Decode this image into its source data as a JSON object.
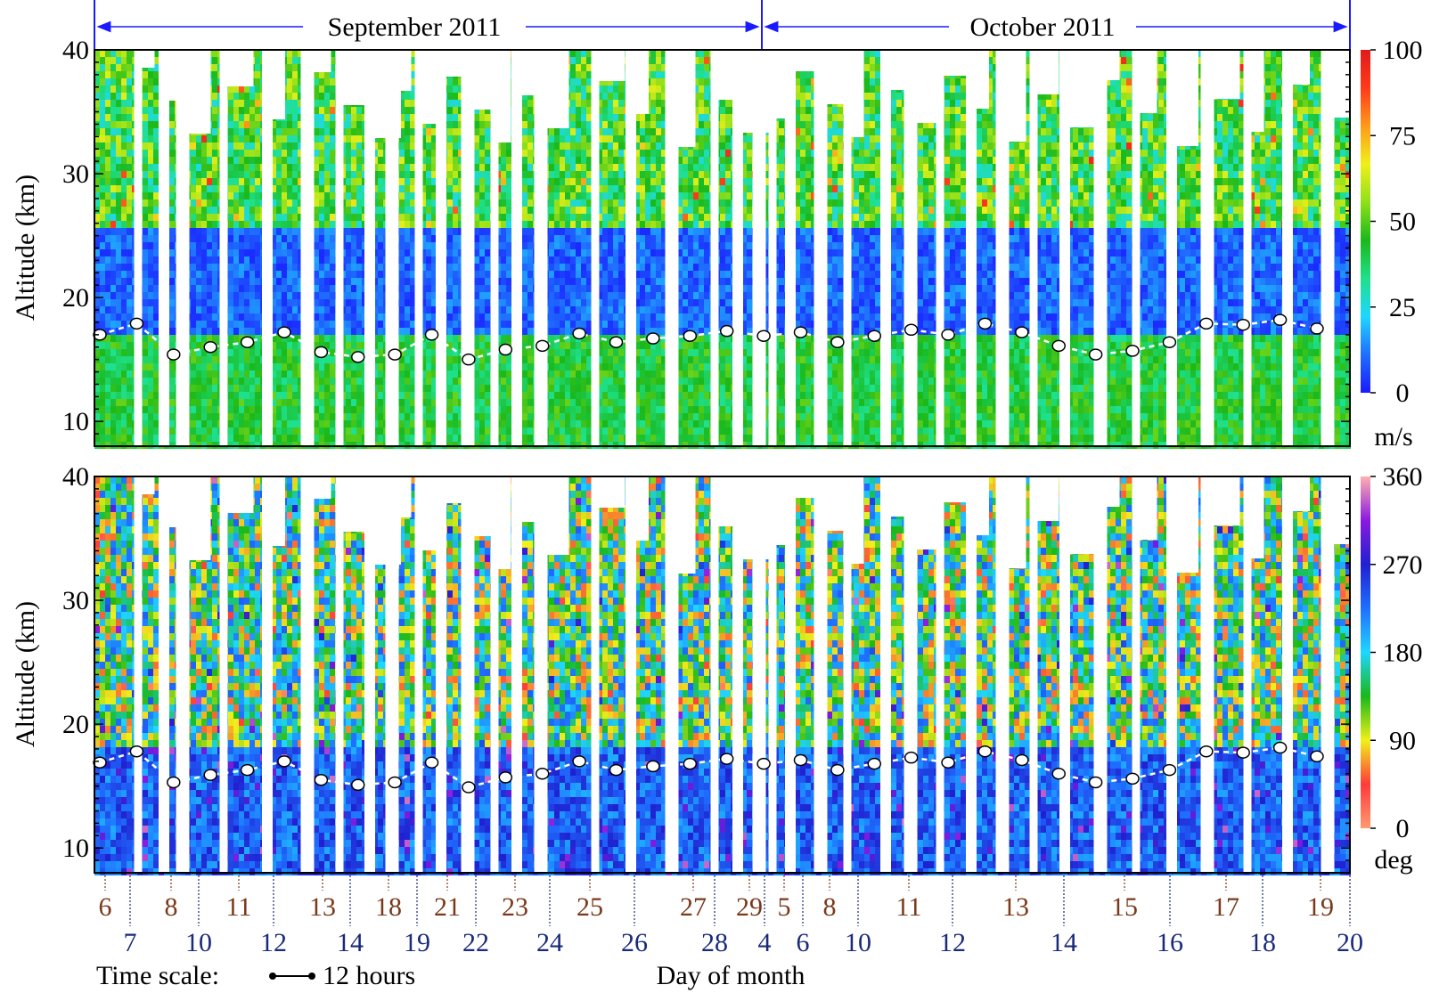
{
  "header": {
    "months": [
      {
        "label": "September 2011"
      },
      {
        "label": "October 2011"
      }
    ]
  },
  "chart_data": [
    {
      "type": "heatmap",
      "panel": "wind-speed",
      "ylabel": "Altitude (km)",
      "ylim": [
        8,
        40
      ],
      "yticks": [
        10,
        20,
        30,
        40
      ],
      "colorbar": {
        "unit": "m/s",
        "ticks": [
          0,
          25,
          50,
          75,
          100
        ],
        "range": [
          0,
          100
        ],
        "colors": [
          "#1a1aff",
          "#1f6fff",
          "#1fd6ff",
          "#1fe08a",
          "#1ab81a",
          "#8fe01a",
          "#f0f01a",
          "#ff9a1a",
          "#ff3a1a",
          "#e01a1a"
        ]
      },
      "tropopause_km": [
        17.0,
        17.9,
        15.4,
        16.0,
        16.4,
        17.2,
        15.6,
        15.2,
        15.4,
        17.0,
        15.0,
        15.8,
        16.1,
        17.1,
        16.4,
        16.7,
        16.9,
        17.3,
        16.9,
        17.2,
        16.4,
        16.9,
        17.4,
        17.0,
        17.9,
        17.2,
        16.1,
        15.4,
        15.7,
        16.4,
        17.9,
        17.8,
        18.2,
        17.5
      ]
    },
    {
      "type": "heatmap",
      "panel": "wind-direction",
      "ylabel": "Altitude (km)",
      "ylim": [
        8,
        40
      ],
      "yticks": [
        10,
        20,
        30,
        40
      ],
      "colorbar": {
        "unit": "deg",
        "ticks": [
          0,
          90,
          180,
          270,
          360
        ],
        "range": [
          0,
          360
        ],
        "colors": [
          "#ff9a70",
          "#ff3a3a",
          "#f0f01a",
          "#1ab81a",
          "#1fd6ff",
          "#1f6fff",
          "#2020d0",
          "#8a1ae0",
          "#ffb0b0"
        ]
      },
      "tropopause_km": [
        16.9,
        17.8,
        15.3,
        15.9,
        16.3,
        17.0,
        15.5,
        15.1,
        15.3,
        16.9,
        14.9,
        15.7,
        16.0,
        17.0,
        16.3,
        16.6,
        16.8,
        17.2,
        16.8,
        17.1,
        16.3,
        16.8,
        17.3,
        16.9,
        17.8,
        17.1,
        16.0,
        15.3,
        15.6,
        16.3,
        17.8,
        17.7,
        18.1,
        17.4
      ]
    }
  ],
  "xaxis": {
    "upper_days": [
      "6",
      "8",
      "11",
      "13",
      "18",
      "21",
      "23",
      "25",
      "27",
      "29",
      "5",
      "8",
      "11",
      "13",
      "15",
      "17",
      "19"
    ],
    "lower_days": [
      "7",
      "10",
      "12",
      "14",
      "19",
      "22",
      "24",
      "26",
      "28",
      "4",
      "6",
      "10",
      "12",
      "14",
      "16",
      "18",
      "20"
    ],
    "upper_color": "#7a3a1a",
    "lower_color": "#1a2a7a",
    "xlabel": "Day of month",
    "time_scale_label": "Time scale:",
    "time_scale_value": "12 hours"
  }
}
